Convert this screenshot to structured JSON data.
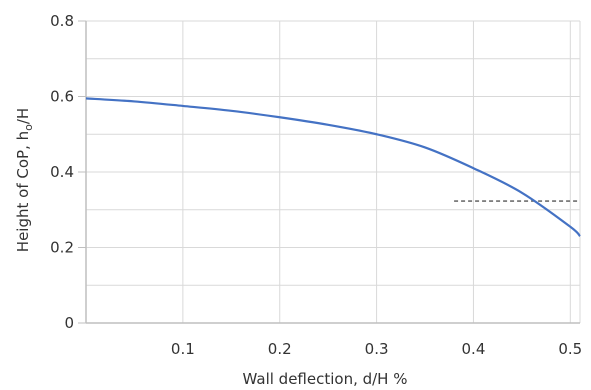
{
  "chart_data": {
    "type": "line",
    "title": "",
    "xlabel": "Wall deflection, d/H %",
    "ylabel_main": "Height of CoP, h",
    "ylabel_sub": "o",
    "ylabel_tail": "/H",
    "xlim": [
      0,
      0.51
    ],
    "ylim": [
      0,
      0.8
    ],
    "x_ticks": [
      0.1,
      0.2,
      0.3,
      0.4,
      0.5
    ],
    "x_tick_labels": [
      "0.1",
      "0.2",
      "0.3",
      "0.4",
      "0.5"
    ],
    "y_ticks": [
      0,
      0.2,
      0.4,
      0.6,
      0.8
    ],
    "y_tick_labels": [
      "0",
      "0.2",
      "0.4",
      "0.6",
      "0.8"
    ],
    "grid": true,
    "series": [
      {
        "color": "#4472c4",
        "x": [
          0.0,
          0.05,
          0.1,
          0.15,
          0.2,
          0.25,
          0.3,
          0.35,
          0.4,
          0.45,
          0.5,
          0.51
        ],
        "y": [
          0.595,
          0.587,
          0.575,
          0.562,
          0.545,
          0.525,
          0.5,
          0.465,
          0.41,
          0.345,
          0.255,
          0.23
        ]
      }
    ],
    "reference_line": {
      "color": "#555555",
      "style": "dashed",
      "y": 0.323,
      "x_start": 0.38,
      "x_end": 0.51
    }
  }
}
